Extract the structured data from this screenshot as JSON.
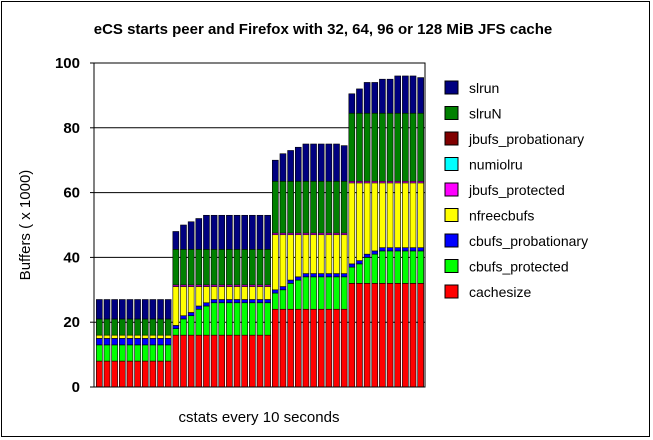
{
  "chart_data": {
    "type": "bar",
    "stacked": true,
    "title": "eCS starts peer and Firefox with 32, 64, 96 or 128 MiB JFS cache",
    "xlabel": "cstats every 10 seconds",
    "ylabel": "Buffers ( x 1000)",
    "ylim": [
      0,
      100
    ],
    "yticks": [
      0,
      20,
      40,
      60,
      80,
      100
    ],
    "grid": true,
    "legend_position": "right",
    "series": [
      {
        "name": "cachesize",
        "color": "#ff0000",
        "values": [
          8,
          8,
          8,
          8,
          8,
          8,
          8,
          8,
          8,
          8,
          16,
          16,
          16,
          16,
          16,
          16,
          16,
          16,
          16,
          16,
          16,
          16,
          16,
          24,
          24,
          24,
          24,
          24,
          24,
          24,
          24,
          24,
          24,
          32,
          32,
          32,
          32,
          32,
          32,
          32,
          32,
          32,
          32
        ]
      },
      {
        "name": "cbufs_protected",
        "color": "#00ff00",
        "values": [
          5,
          5,
          5,
          5,
          5,
          5,
          5,
          5,
          5,
          5,
          2,
          5,
          6,
          8,
          9,
          10,
          10,
          10,
          10,
          10,
          10,
          10,
          10,
          5,
          6,
          8,
          9,
          10,
          10,
          10,
          10,
          10,
          10,
          5,
          6,
          8,
          9,
          10,
          10,
          10,
          10,
          10,
          10
        ]
      },
      {
        "name": "cbufs_probationary",
        "color": "#0000ff",
        "values": [
          2,
          2,
          2,
          2,
          2,
          2,
          2,
          2,
          2,
          2,
          1,
          1,
          1,
          1,
          1,
          1,
          1,
          1,
          1,
          1,
          1,
          1,
          1,
          1,
          1,
          1,
          1,
          1,
          1,
          1,
          1,
          1,
          1,
          1,
          1,
          1,
          1,
          1,
          1,
          1,
          1,
          1,
          1
        ]
      },
      {
        "name": "nfreecbufs",
        "color": "#ffff00",
        "values": [
          1,
          1,
          1,
          1,
          1,
          1,
          1,
          1,
          1,
          1,
          12,
          9,
          8,
          6,
          5,
          4,
          4,
          4,
          4,
          4,
          4,
          4,
          4,
          17,
          16,
          14,
          13,
          12,
          12,
          12,
          12,
          12,
          12,
          25,
          24,
          22,
          21,
          20,
          20,
          20,
          20,
          20,
          20
        ]
      },
      {
        "name": "jbufs_protected",
        "color": "#ff00ff",
        "values": [
          0,
          0,
          0,
          0,
          0,
          0,
          0,
          0,
          0,
          0,
          0.5,
          0.5,
          0.5,
          0.5,
          0.5,
          0.5,
          0.5,
          0.5,
          0.5,
          0.5,
          0.5,
          0.5,
          0.5,
          0.5,
          0.5,
          0.5,
          0.5,
          0.5,
          0.5,
          0.5,
          0.5,
          0.5,
          0.5,
          0.5,
          0.5,
          0.5,
          0.5,
          0.5,
          0.5,
          0.5,
          0.5,
          0.5,
          0.5
        ]
      },
      {
        "name": "numiolru",
        "color": "#00ffff",
        "values": [
          0,
          0,
          0,
          0,
          0,
          0,
          0,
          0,
          0,
          0,
          0,
          0,
          0,
          0,
          0,
          0,
          0,
          0,
          0,
          0,
          0,
          0,
          0,
          0,
          0,
          0,
          0,
          0,
          0,
          0,
          0,
          0,
          0,
          0,
          0,
          0,
          0,
          0,
          0,
          0,
          0,
          0,
          0
        ]
      },
      {
        "name": "jbufs_probationary",
        "color": "#800000",
        "values": [
          0,
          0,
          0,
          0,
          0,
          0,
          0,
          0,
          0,
          0,
          0,
          0,
          0,
          0,
          0,
          0,
          0,
          0,
          0,
          0,
          0,
          0,
          0,
          0,
          0,
          0,
          0,
          0,
          0,
          0,
          0,
          0,
          0,
          0,
          0,
          0,
          0,
          0,
          0,
          0,
          0,
          0,
          0
        ]
      },
      {
        "name": "slruN",
        "color": "#008000",
        "values": [
          5,
          5,
          5,
          5,
          5,
          5,
          5,
          5,
          5,
          5,
          11,
          11,
          11,
          11,
          11,
          11,
          11,
          11,
          11,
          11,
          11,
          11,
          11,
          16,
          16,
          16,
          16,
          16,
          16,
          16,
          16,
          16,
          16,
          21,
          21,
          21,
          21,
          21,
          21,
          21,
          21,
          21,
          21
        ]
      },
      {
        "name": "slrun",
        "color": "#000080",
        "values": [
          6,
          6,
          6,
          6,
          6,
          6,
          6,
          6,
          6,
          6,
          5.5,
          7.5,
          8.5,
          9.5,
          10.5,
          10.5,
          10.5,
          10.5,
          10.5,
          10.5,
          10.5,
          10.5,
          10.5,
          6.5,
          8.5,
          9.5,
          10.5,
          11.5,
          11.5,
          11.5,
          11.5,
          11.5,
          11,
          6,
          7.5,
          9.5,
          9.5,
          10.5,
          10.5,
          11.5,
          11.5,
          11.5,
          11
        ]
      }
    ]
  }
}
